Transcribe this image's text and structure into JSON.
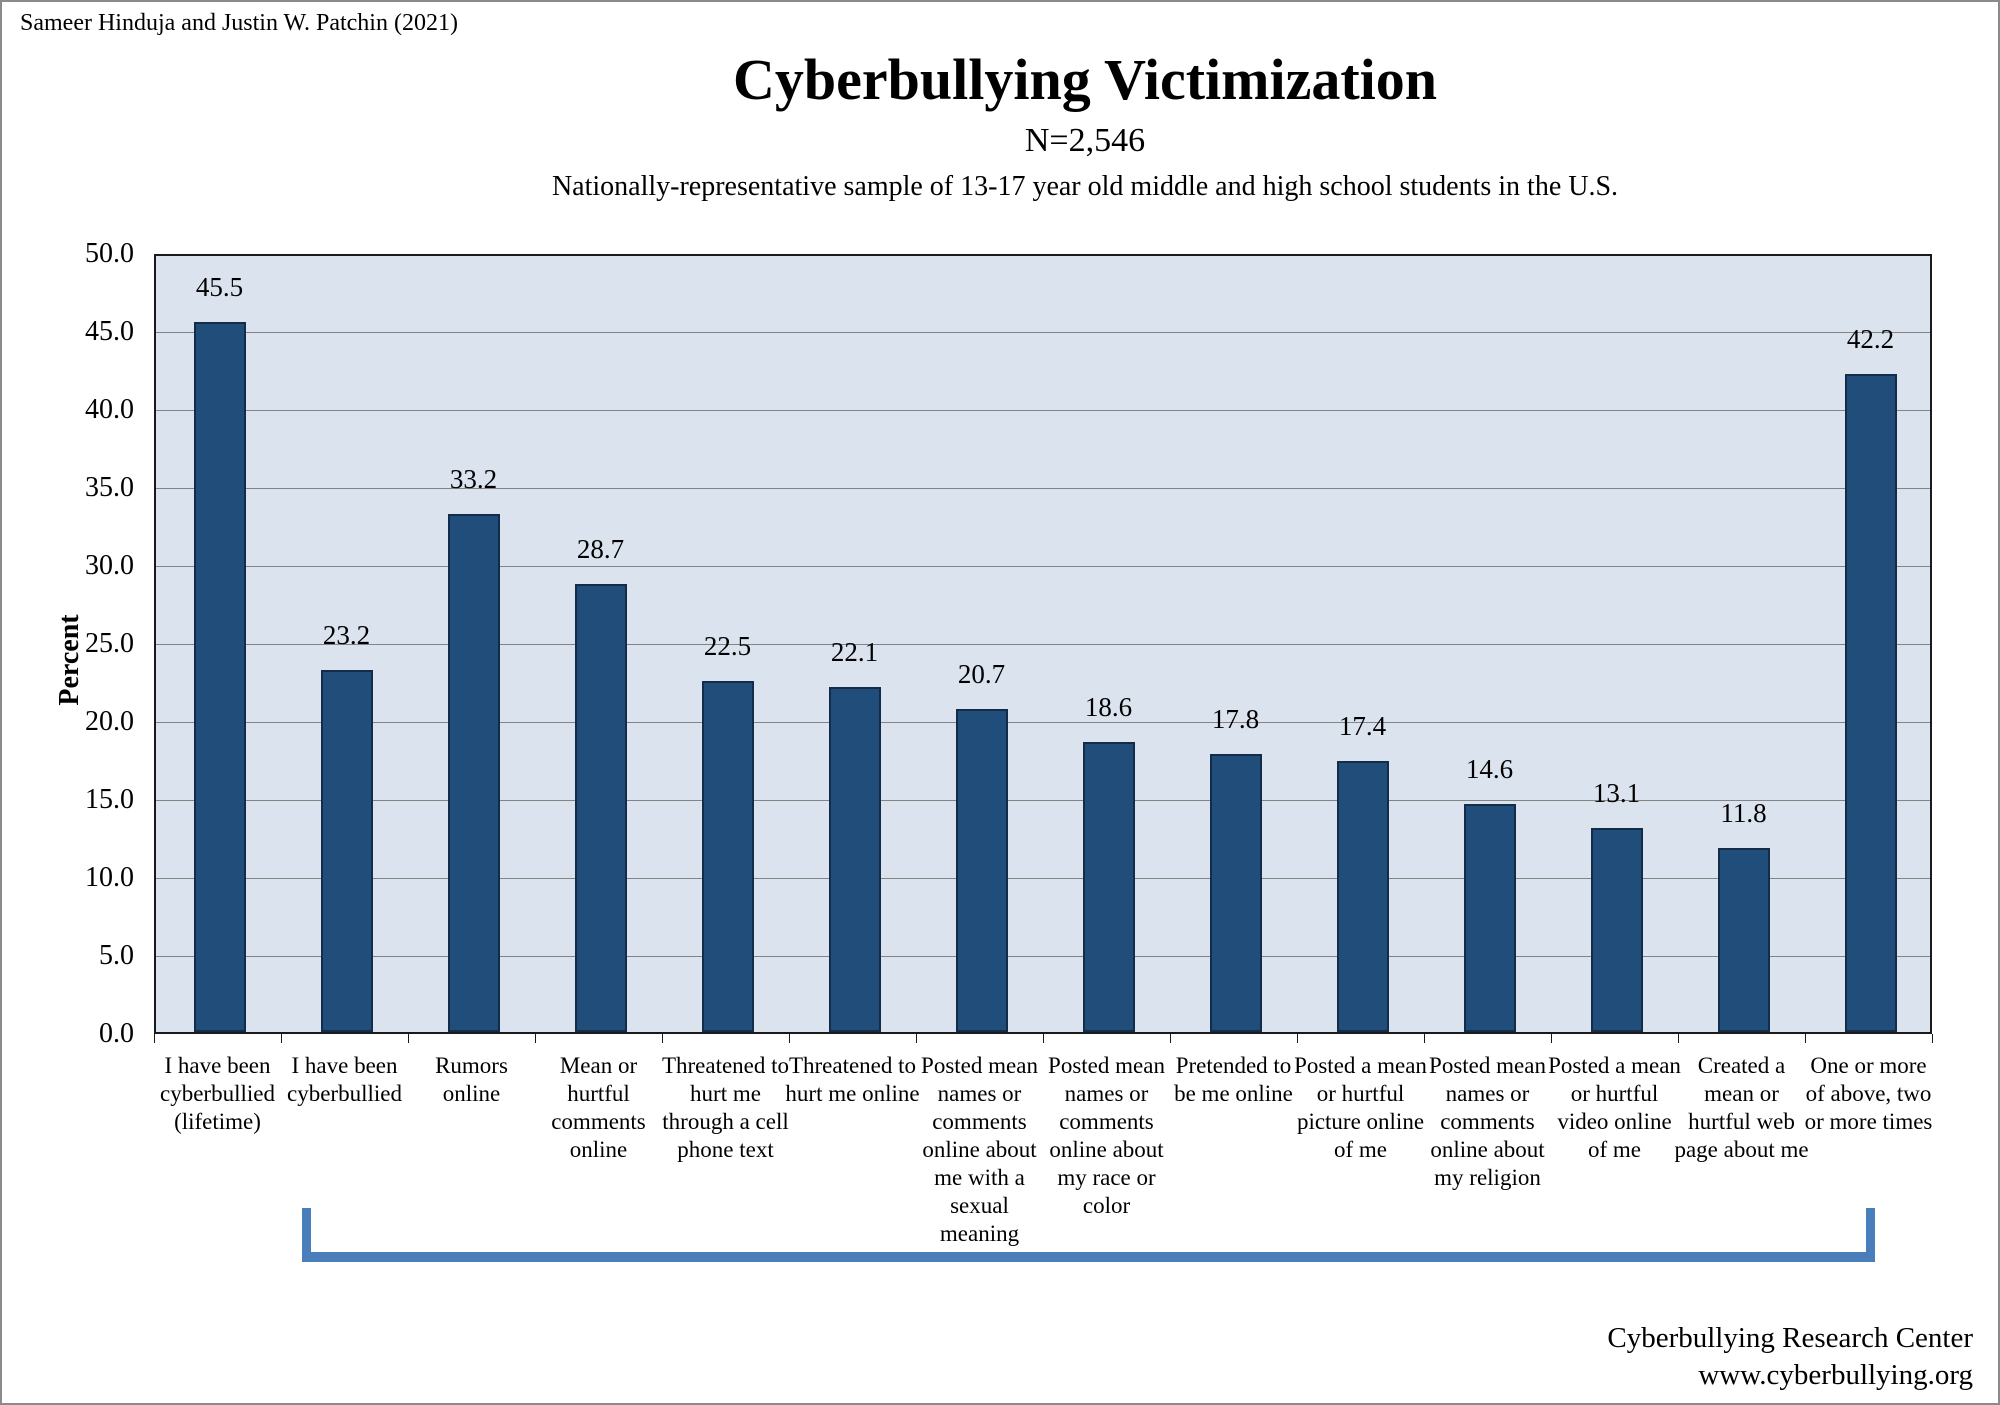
{
  "page": {
    "credit": "Sameer Hinduja and Justin W. Patchin (2021)",
    "footer_line1": "Cyberbullying Research Center",
    "footer_line2": "www.cyberbullying.org"
  },
  "chart_data": {
    "type": "bar",
    "title": "Cyberbullying Victimization",
    "subtitle": "N=2,546",
    "description": "Nationally-representative sample of 13-17 year old middle and high school students in the U.S.",
    "xlabel": "",
    "ylabel": "Percent",
    "ylim": [
      0,
      50
    ],
    "ytick_step": 5,
    "grid": true,
    "legend": "none",
    "categories": [
      "I have been cyberbullied (lifetime)",
      "I have been cyberbullied",
      "Rumors online",
      "Mean or hurtful comments online",
      "Threatened to hurt me through a cell phone text",
      "Threatened to hurt me online",
      "Posted mean names or comments online about me with a sexual meaning",
      "Posted mean names or comments online about my race or color",
      "Pretended to be me online",
      "Posted a mean or hurtful picture online of me",
      "Posted mean names or comments online about my religion",
      "Posted a mean or hurtful video online of me",
      "Created a mean or hurtful web page about me",
      "One or more of above, two or more times"
    ],
    "values": [
      45.5,
      23.2,
      33.2,
      28.7,
      22.5,
      22.1,
      20.7,
      18.6,
      17.8,
      17.4,
      14.6,
      13.1,
      11.8,
      42.2
    ],
    "annotation_bracket": {
      "from_category": "I have been cyberbullied",
      "to_category": "One or more of above, two or more times"
    },
    "colors": {
      "bar_fill": "#204d7a",
      "bar_border": "#132c49",
      "plot_bg": "#dbe3ef",
      "gridline": "#848484",
      "frame": "#1a1a1a",
      "bracket": "#4a7ebb",
      "text": "#000000"
    }
  }
}
